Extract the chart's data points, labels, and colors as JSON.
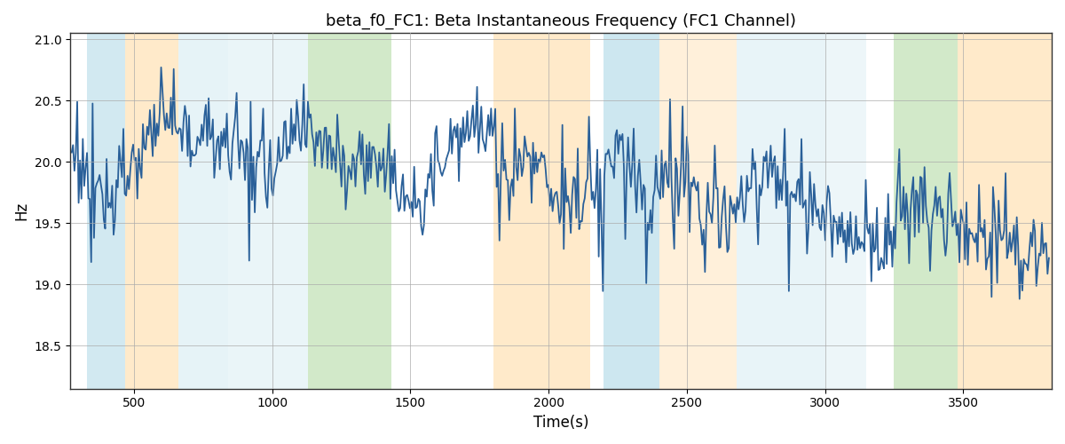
{
  "title": "beta_f0_FC1: Beta Instantaneous Frequency (FC1 Channel)",
  "xlabel": "Time(s)",
  "ylabel": "Hz",
  "ylim": [
    18.15,
    21.05
  ],
  "xlim": [
    270,
    3820
  ],
  "yticks": [
    18.5,
    19.0,
    19.5,
    20.0,
    20.5,
    21.0
  ],
  "xticks": [
    500,
    1000,
    1500,
    2000,
    2500,
    3000,
    3500
  ],
  "line_color": "#2a6099",
  "line_width": 1.3,
  "background_color": "#ffffff",
  "grid_color": "#aaaaaa",
  "shaded_regions": [
    {
      "xmin": 330,
      "xmax": 470,
      "color": "#add8e6",
      "alpha": 0.55
    },
    {
      "xmin": 470,
      "xmax": 660,
      "color": "#ffdaa0",
      "alpha": 0.55
    },
    {
      "xmin": 660,
      "xmax": 840,
      "color": "#add8e6",
      "alpha": 0.3
    },
    {
      "xmin": 840,
      "xmax": 1130,
      "color": "#add8e6",
      "alpha": 0.25
    },
    {
      "xmin": 1130,
      "xmax": 1430,
      "color": "#90c878",
      "alpha": 0.4
    },
    {
      "xmin": 1800,
      "xmax": 2150,
      "color": "#ffdaa0",
      "alpha": 0.55
    },
    {
      "xmin": 2200,
      "xmax": 2400,
      "color": "#add8e6",
      "alpha": 0.6
    },
    {
      "xmin": 2400,
      "xmax": 2680,
      "color": "#ffdaa0",
      "alpha": 0.38
    },
    {
      "xmin": 2680,
      "xmax": 3000,
      "color": "#add8e6",
      "alpha": 0.28
    },
    {
      "xmin": 3000,
      "xmax": 3150,
      "color": "#add8e6",
      "alpha": 0.22
    },
    {
      "xmin": 3250,
      "xmax": 3480,
      "color": "#90c878",
      "alpha": 0.4
    },
    {
      "xmin": 3480,
      "xmax": 3820,
      "color": "#ffdaa0",
      "alpha": 0.55
    }
  ],
  "seed": 77,
  "t_start": 275,
  "t_end": 3810,
  "n_points": 700
}
